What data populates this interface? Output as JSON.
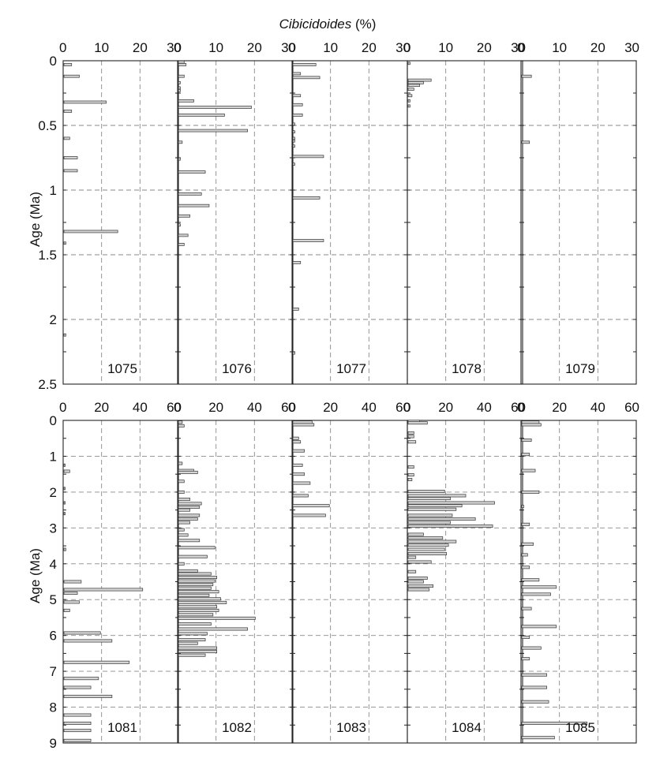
{
  "title_italic": "Cibicidoides",
  "title_unit": " (%)",
  "y_axis_label": "Age (Ma)",
  "chart_data": [
    {
      "type": "bar",
      "orientation": "horizontal",
      "site": "1075",
      "xlim": [
        0,
        30
      ],
      "xticks": [
        0,
        10,
        20,
        30
      ],
      "ylim": [
        0,
        2.5
      ],
      "yticks": [
        0,
        0.5,
        1,
        1.5,
        2,
        2.5
      ],
      "bars": [
        {
          "age": 0.03,
          "value": 2
        },
        {
          "age": 0.12,
          "value": 4
        },
        {
          "age": 0.32,
          "value": 11
        },
        {
          "age": 0.39,
          "value": 2
        },
        {
          "age": 0.6,
          "value": 1.5
        },
        {
          "age": 0.75,
          "value": 3.5
        },
        {
          "age": 0.85,
          "value": 3.5
        },
        {
          "age": 1.32,
          "value": 14
        },
        {
          "age": 1.41,
          "value": 0.5
        },
        {
          "age": 2.12,
          "value": 0.5
        }
      ]
    },
    {
      "type": "bar",
      "orientation": "horizontal",
      "site": "1076",
      "xlim": [
        0,
        30
      ],
      "xticks": [
        0,
        10,
        20,
        30
      ],
      "ylim": [
        0,
        2.5
      ],
      "yticks": [
        0,
        0.5,
        1,
        1.5,
        2,
        2.5
      ],
      "bars": [
        {
          "age": 0.01,
          "value": 1.5
        },
        {
          "age": 0.03,
          "value": 2
        },
        {
          "age": 0.12,
          "value": 1.5
        },
        {
          "age": 0.17,
          "value": 0.5
        },
        {
          "age": 0.21,
          "value": 0.5
        },
        {
          "age": 0.23,
          "value": 0.5
        },
        {
          "age": 0.31,
          "value": 4
        },
        {
          "age": 0.36,
          "value": 19
        },
        {
          "age": 0.42,
          "value": 12
        },
        {
          "age": 0.54,
          "value": 18
        },
        {
          "age": 0.63,
          "value": 1
        },
        {
          "age": 0.76,
          "value": 0.5
        },
        {
          "age": 0.86,
          "value": 7
        },
        {
          "age": 1.03,
          "value": 6
        },
        {
          "age": 1.12,
          "value": 8
        },
        {
          "age": 1.2,
          "value": 3
        },
        {
          "age": 1.27,
          "value": 0.5
        },
        {
          "age": 1.35,
          "value": 2.5
        },
        {
          "age": 1.42,
          "value": 1.5
        }
      ]
    },
    {
      "type": "bar",
      "orientation": "horizontal",
      "site": "1077",
      "xlim": [
        0,
        30
      ],
      "xticks": [
        0,
        10,
        20,
        30
      ],
      "ylim": [
        0,
        2.5
      ],
      "yticks": [
        0,
        0.5,
        1,
        1.5,
        2,
        2.5
      ],
      "bars": [
        {
          "age": 0.03,
          "value": 6
        },
        {
          "age": 0.1,
          "value": 2
        },
        {
          "age": 0.13,
          "value": 7
        },
        {
          "age": 0.27,
          "value": 2
        },
        {
          "age": 0.34,
          "value": 2.5
        },
        {
          "age": 0.42,
          "value": 2.5
        },
        {
          "age": 0.49,
          "value": 0.5
        },
        {
          "age": 0.55,
          "value": 0.5
        },
        {
          "age": 0.6,
          "value": 0.5
        },
        {
          "age": 0.62,
          "value": 0.5
        },
        {
          "age": 0.66,
          "value": 0.5
        },
        {
          "age": 0.74,
          "value": 8
        },
        {
          "age": 0.8,
          "value": 0.5
        },
        {
          "age": 1.06,
          "value": 7
        },
        {
          "age": 1.39,
          "value": 8
        },
        {
          "age": 1.56,
          "value": 2
        },
        {
          "age": 1.92,
          "value": 1.5
        },
        {
          "age": 2.26,
          "value": 0.5
        }
      ]
    },
    {
      "type": "bar",
      "orientation": "horizontal",
      "site": "1078",
      "xlim": [
        0,
        30
      ],
      "xticks": [
        0,
        10,
        20,
        30
      ],
      "ylim": [
        0,
        2.5
      ],
      "yticks": [
        0,
        0.5,
        1,
        1.5,
        2,
        2.5
      ],
      "bars": [
        {
          "age": 0.02,
          "value": 0.5
        },
        {
          "age": 0.15,
          "value": 6
        },
        {
          "age": 0.17,
          "value": 4
        },
        {
          "age": 0.19,
          "value": 3
        },
        {
          "age": 0.22,
          "value": 1.5
        },
        {
          "age": 0.27,
          "value": 1
        },
        {
          "age": 0.31,
          "value": 0.5
        },
        {
          "age": 0.35,
          "value": 0.5
        }
      ]
    },
    {
      "type": "bar",
      "orientation": "horizontal",
      "site": "1079",
      "xlim": [
        0,
        30
      ],
      "xticks": [
        0,
        10,
        20,
        30
      ],
      "ylim": [
        0,
        2.5
      ],
      "yticks": [
        0,
        0.5,
        1,
        1.5,
        2,
        2.5
      ],
      "bars": [
        {
          "age": 0.12,
          "value": 2.5
        },
        {
          "age": 0.63,
          "value": 2
        }
      ]
    },
    {
      "type": "bar",
      "orientation": "horizontal",
      "site": "1081",
      "xlim": [
        0,
        60
      ],
      "xticks": [
        0,
        20,
        40,
        60
      ],
      "ylim": [
        0,
        9
      ],
      "yticks": [
        0,
        1,
        2,
        3,
        4,
        5,
        6,
        7,
        8,
        9
      ],
      "bars": [
        {
          "age": 1.25,
          "value": 0.5
        },
        {
          "age": 1.42,
          "value": 3
        },
        {
          "age": 1.9,
          "value": 0.5
        },
        {
          "age": 2.3,
          "value": 0.5
        },
        {
          "age": 2.6,
          "value": 0.5
        },
        {
          "age": 3.6,
          "value": 1
        },
        {
          "age": 4.5,
          "value": 9
        },
        {
          "age": 4.72,
          "value": 41
        },
        {
          "age": 4.82,
          "value": 7
        },
        {
          "age": 5.07,
          "value": 8
        },
        {
          "age": 5.3,
          "value": 3
        },
        {
          "age": 5.93,
          "value": 19
        },
        {
          "age": 6.15,
          "value": 25
        },
        {
          "age": 6.75,
          "value": 34
        },
        {
          "age": 7.2,
          "value": 18
        },
        {
          "age": 7.45,
          "value": 14
        },
        {
          "age": 7.7,
          "value": 25
        },
        {
          "age": 8.22,
          "value": 14
        },
        {
          "age": 8.45,
          "value": 14
        },
        {
          "age": 8.65,
          "value": 14
        },
        {
          "age": 8.93,
          "value": 14
        }
      ]
    },
    {
      "type": "bar",
      "orientation": "horizontal",
      "site": "1082",
      "xlim": [
        0,
        60
      ],
      "xticks": [
        0,
        20,
        40,
        60
      ],
      "ylim": [
        0,
        9
      ],
      "yticks": [
        0,
        1,
        2,
        3,
        4,
        5,
        6,
        7,
        8,
        9
      ],
      "bars": [
        {
          "age": 0.05,
          "value": 2
        },
        {
          "age": 0.15,
          "value": 3
        },
        {
          "age": 1.2,
          "value": 2
        },
        {
          "age": 1.4,
          "value": 8
        },
        {
          "age": 1.45,
          "value": 10
        },
        {
          "age": 1.7,
          "value": 3
        },
        {
          "age": 2.0,
          "value": 3
        },
        {
          "age": 2.2,
          "value": 6
        },
        {
          "age": 2.32,
          "value": 12
        },
        {
          "age": 2.42,
          "value": 11
        },
        {
          "age": 2.5,
          "value": 6
        },
        {
          "age": 2.65,
          "value": 11
        },
        {
          "age": 2.75,
          "value": 10
        },
        {
          "age": 2.85,
          "value": 6
        },
        {
          "age": 3.05,
          "value": 3
        },
        {
          "age": 3.2,
          "value": 5
        },
        {
          "age": 3.35,
          "value": 11
        },
        {
          "age": 3.55,
          "value": 19
        },
        {
          "age": 3.8,
          "value": 15
        },
        {
          "age": 4.0,
          "value": 3
        },
        {
          "age": 4.2,
          "value": 10
        },
        {
          "age": 4.28,
          "value": 17
        },
        {
          "age": 4.38,
          "value": 20
        },
        {
          "age": 4.48,
          "value": 19
        },
        {
          "age": 4.58,
          "value": 18
        },
        {
          "age": 4.68,
          "value": 17
        },
        {
          "age": 4.78,
          "value": 21
        },
        {
          "age": 4.88,
          "value": 16
        },
        {
          "age": 4.98,
          "value": 22
        },
        {
          "age": 5.08,
          "value": 25
        },
        {
          "age": 5.2,
          "value": 20
        },
        {
          "age": 5.3,
          "value": 21
        },
        {
          "age": 5.42,
          "value": 18
        },
        {
          "age": 5.52,
          "value": 40
        },
        {
          "age": 5.68,
          "value": 17
        },
        {
          "age": 5.82,
          "value": 36
        },
        {
          "age": 5.95,
          "value": 15
        },
        {
          "age": 6.12,
          "value": 14
        },
        {
          "age": 6.22,
          "value": 10
        },
        {
          "age": 6.35,
          "value": 20
        },
        {
          "age": 6.45,
          "value": 20
        },
        {
          "age": 6.55,
          "value": 14
        }
      ]
    },
    {
      "type": "bar",
      "orientation": "horizontal",
      "site": "1083",
      "xlim": [
        0,
        60
      ],
      "xticks": [
        0,
        20,
        40,
        60
      ],
      "ylim": [
        0,
        9
      ],
      "yticks": [
        0,
        1,
        2,
        3,
        4,
        5,
        6,
        7,
        8,
        9
      ],
      "bars": [
        {
          "age": 0.05,
          "value": 10
        },
        {
          "age": 0.12,
          "value": 11
        },
        {
          "age": 0.5,
          "value": 3
        },
        {
          "age": 0.6,
          "value": 4
        },
        {
          "age": 0.85,
          "value": 6
        },
        {
          "age": 1.25,
          "value": 5
        },
        {
          "age": 1.5,
          "value": 6
        },
        {
          "age": 1.75,
          "value": 9
        },
        {
          "age": 2.1,
          "value": 8
        },
        {
          "age": 2.38,
          "value": 19
        },
        {
          "age": 2.65,
          "value": 17
        }
      ]
    },
    {
      "type": "bar",
      "orientation": "horizontal",
      "site": "1084",
      "xlim": [
        0,
        60
      ],
      "xticks": [
        0,
        20,
        40,
        60
      ],
      "ylim": [
        0,
        9
      ],
      "yticks": [
        0,
        1,
        2,
        3,
        4,
        5,
        6,
        7,
        8,
        9
      ],
      "bars": [
        {
          "age": 0.03,
          "value": 6
        },
        {
          "age": 0.07,
          "value": 10
        },
        {
          "age": 0.35,
          "value": 3
        },
        {
          "age": 0.45,
          "value": 3
        },
        {
          "age": 0.6,
          "value": 4
        },
        {
          "age": 1.3,
          "value": 3
        },
        {
          "age": 1.52,
          "value": 3
        },
        {
          "age": 1.65,
          "value": 2
        },
        {
          "age": 1.98,
          "value": 19
        },
        {
          "age": 2.1,
          "value": 30
        },
        {
          "age": 2.18,
          "value": 22
        },
        {
          "age": 2.3,
          "value": 45
        },
        {
          "age": 2.38,
          "value": 28
        },
        {
          "age": 2.48,
          "value": 25
        },
        {
          "age": 2.65,
          "value": 23
        },
        {
          "age": 2.75,
          "value": 35
        },
        {
          "age": 2.85,
          "value": 22
        },
        {
          "age": 2.95,
          "value": 44
        },
        {
          "age": 3.18,
          "value": 8
        },
        {
          "age": 3.28,
          "value": 18
        },
        {
          "age": 3.38,
          "value": 25
        },
        {
          "age": 3.48,
          "value": 21
        },
        {
          "age": 3.6,
          "value": 19
        },
        {
          "age": 3.72,
          "value": 20
        },
        {
          "age": 3.82,
          "value": 4
        },
        {
          "age": 3.95,
          "value": 12
        },
        {
          "age": 4.22,
          "value": 4
        },
        {
          "age": 4.4,
          "value": 10
        },
        {
          "age": 4.5,
          "value": 8
        },
        {
          "age": 4.62,
          "value": 13
        },
        {
          "age": 4.72,
          "value": 11
        }
      ]
    },
    {
      "type": "bar",
      "orientation": "horizontal",
      "site": "1085",
      "xlim": [
        0,
        60
      ],
      "xticks": [
        0,
        20,
        40,
        60
      ],
      "ylim": [
        0,
        9
      ],
      "yticks": [
        0,
        1,
        2,
        3,
        4,
        5,
        6,
        7,
        8,
        9
      ],
      "bars": [
        {
          "age": 0.05,
          "value": 9
        },
        {
          "age": 0.12,
          "value": 10
        },
        {
          "age": 0.55,
          "value": 5
        },
        {
          "age": 0.95,
          "value": 4
        },
        {
          "age": 1.4,
          "value": 7
        },
        {
          "age": 2.0,
          "value": 9
        },
        {
          "age": 2.4,
          "value": 1
        },
        {
          "age": 2.9,
          "value": 4
        },
        {
          "age": 3.45,
          "value": 6
        },
        {
          "age": 3.75,
          "value": 3
        },
        {
          "age": 4.1,
          "value": 4
        },
        {
          "age": 4.45,
          "value": 9
        },
        {
          "age": 4.65,
          "value": 18
        },
        {
          "age": 4.85,
          "value": 15
        },
        {
          "age": 5.25,
          "value": 5
        },
        {
          "age": 5.75,
          "value": 18
        },
        {
          "age": 6.05,
          "value": 4
        },
        {
          "age": 6.35,
          "value": 10
        },
        {
          "age": 6.65,
          "value": 4
        },
        {
          "age": 7.1,
          "value": 13
        },
        {
          "age": 7.45,
          "value": 13
        },
        {
          "age": 7.85,
          "value": 14
        },
        {
          "age": 8.45,
          "value": 34
        },
        {
          "age": 8.85,
          "value": 17
        }
      ]
    }
  ]
}
